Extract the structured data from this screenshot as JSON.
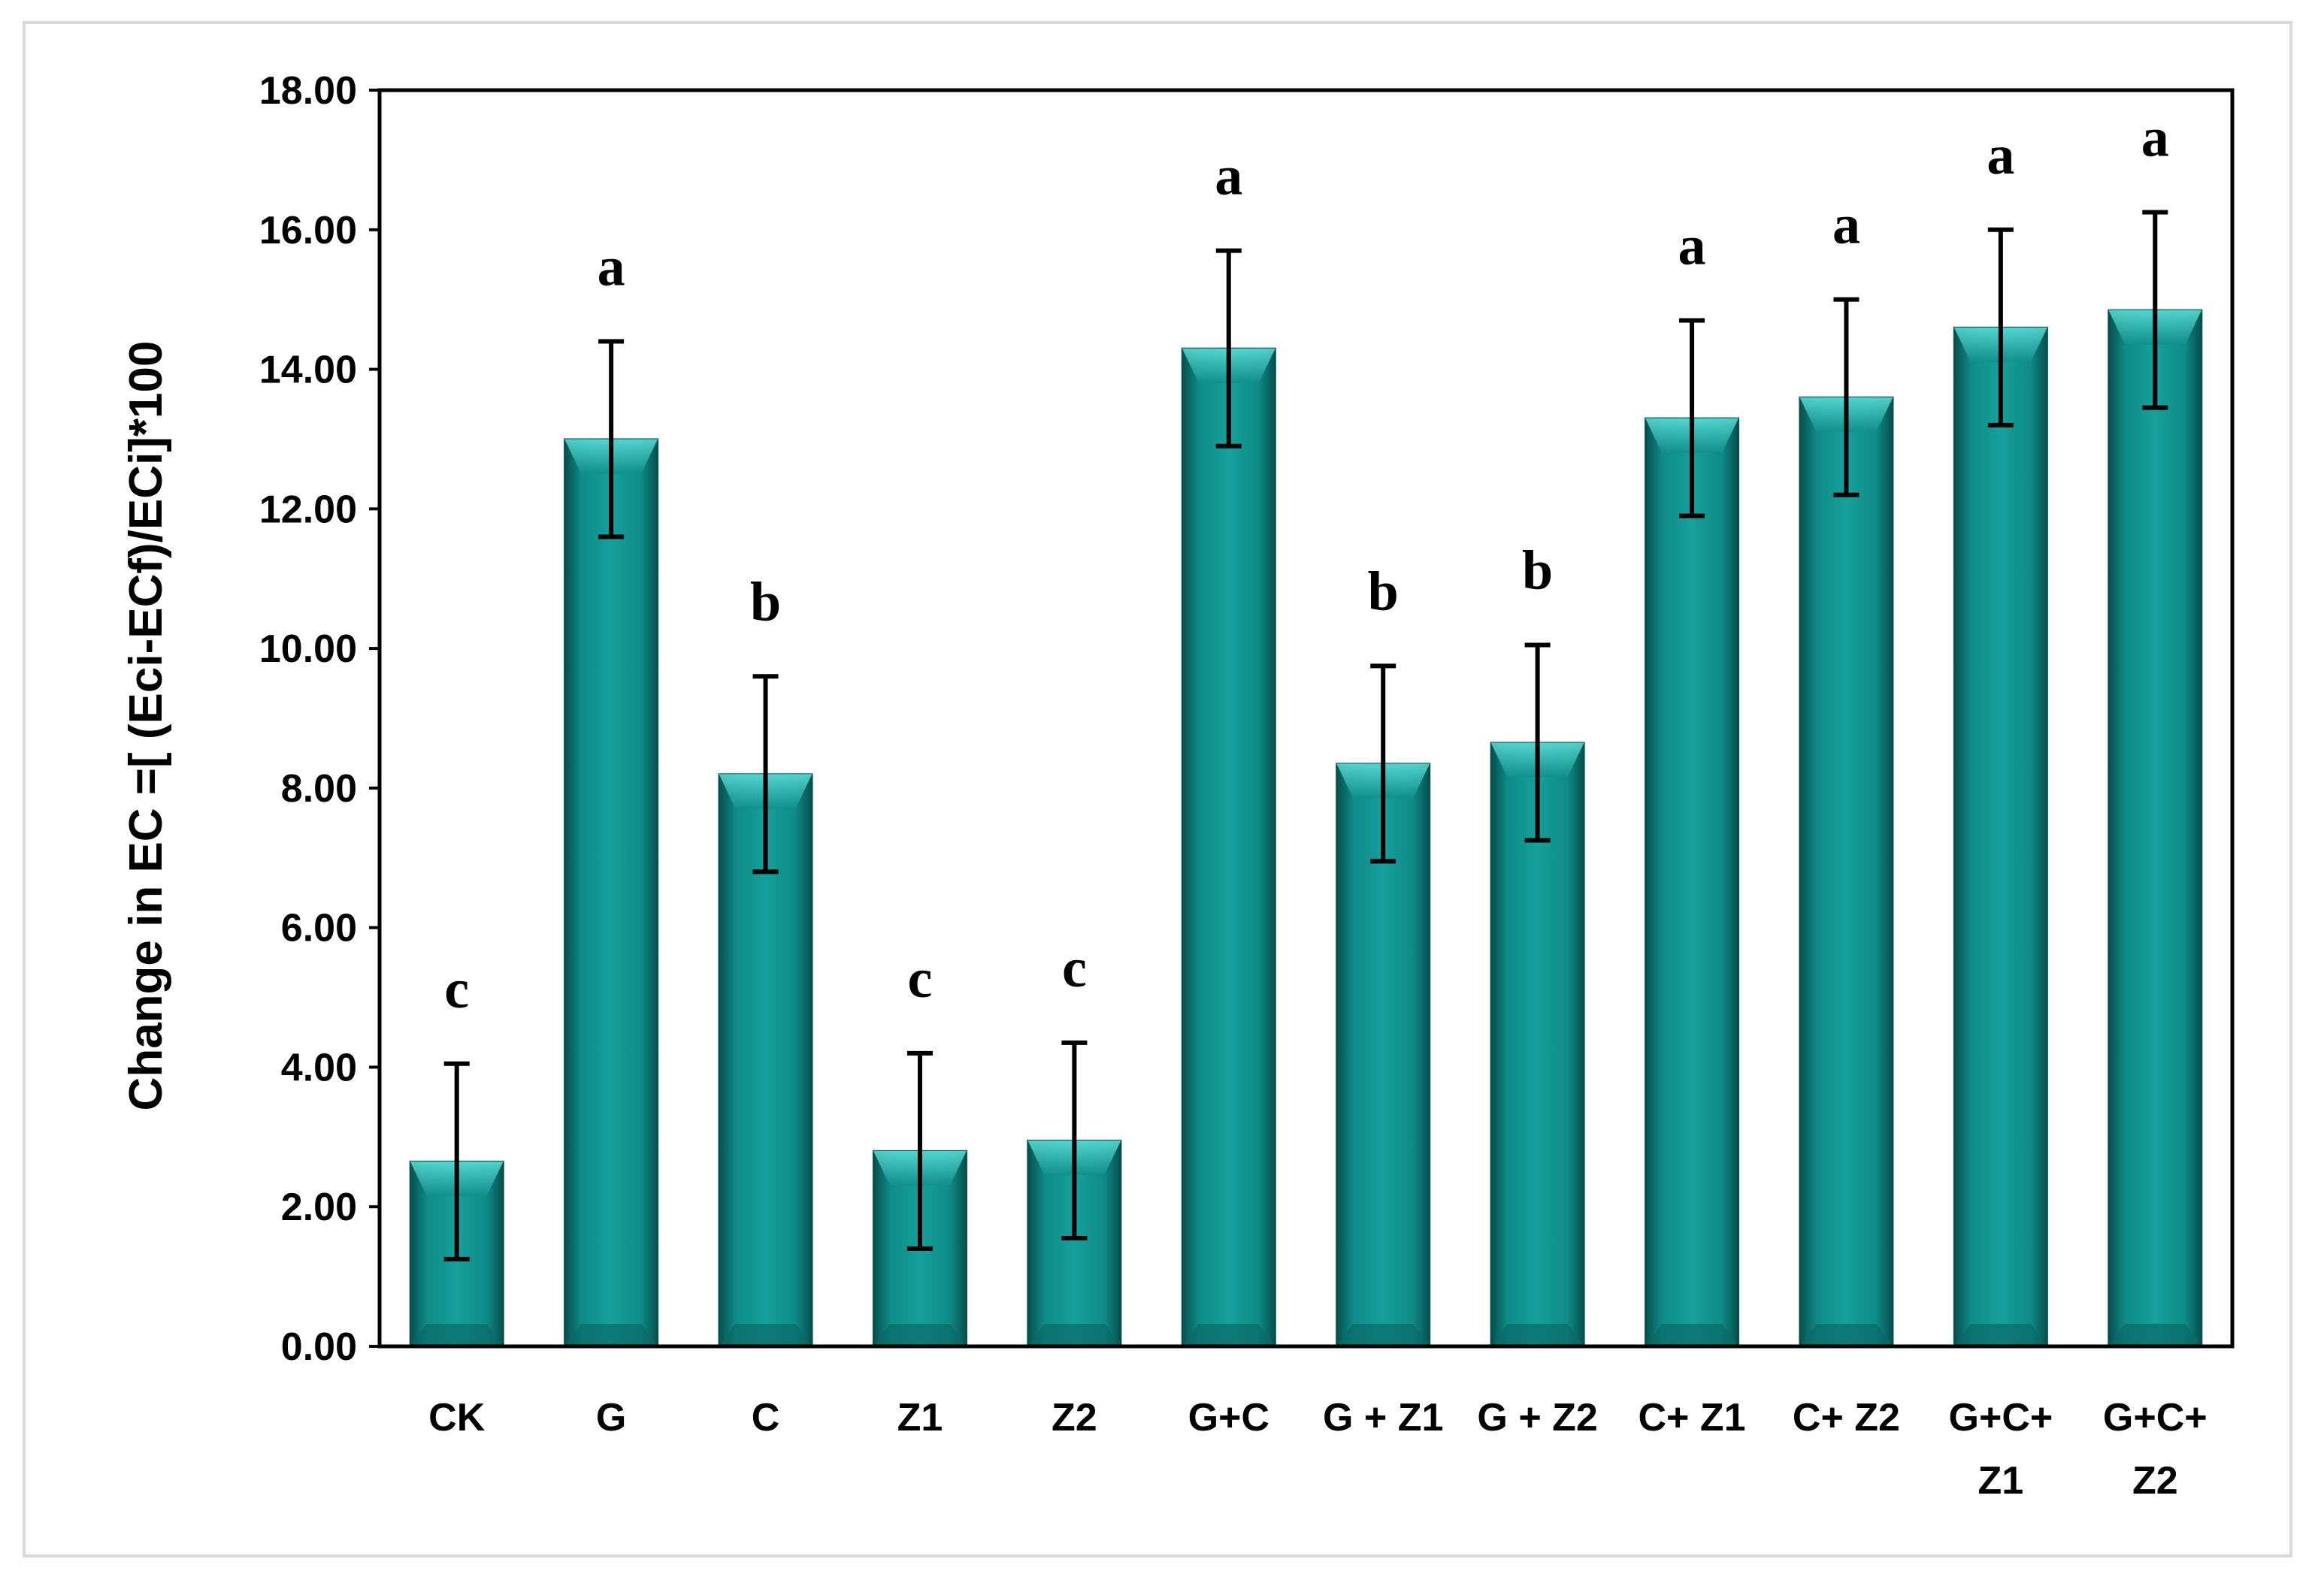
{
  "chart_data": {
    "type": "bar",
    "title": "",
    "xlabel": "",
    "ylabel": "Change in EC =[ (Eci-ECf)/ECi]*100",
    "ylim": [
      0,
      18
    ],
    "yticks": [
      "0.00",
      "2.00",
      "4.00",
      "6.00",
      "8.00",
      "10.00",
      "12.00",
      "14.00",
      "16.00",
      "18.00"
    ],
    "grid": false,
    "legend": "none",
    "categories": [
      [
        "CK"
      ],
      [
        "G"
      ],
      [
        "C"
      ],
      [
        "Z1"
      ],
      [
        "Z2"
      ],
      [
        "G+C"
      ],
      [
        "G + Z1"
      ],
      [
        "G + Z2"
      ],
      [
        "C+ Z1"
      ],
      [
        "C+ Z2"
      ],
      [
        "G+C+",
        "Z1"
      ],
      [
        "G+C+",
        "Z2"
      ]
    ],
    "values": [
      2.65,
      13.0,
      8.2,
      2.8,
      2.95,
      14.3,
      8.35,
      8.65,
      13.3,
      13.6,
      14.6,
      14.85
    ],
    "error": [
      1.4,
      1.4,
      1.4,
      1.4,
      1.4,
      1.4,
      1.4,
      1.4,
      1.4,
      1.4,
      1.4,
      1.4
    ],
    "significance": [
      "c",
      "a",
      "b",
      "c",
      "c",
      "a",
      "b",
      "b",
      "a",
      "a",
      "a",
      "a"
    ],
    "bar_color": "#0f8a87",
    "bar_highlight": "#3fc9c4",
    "bar_shadow": "#064f4d"
  }
}
